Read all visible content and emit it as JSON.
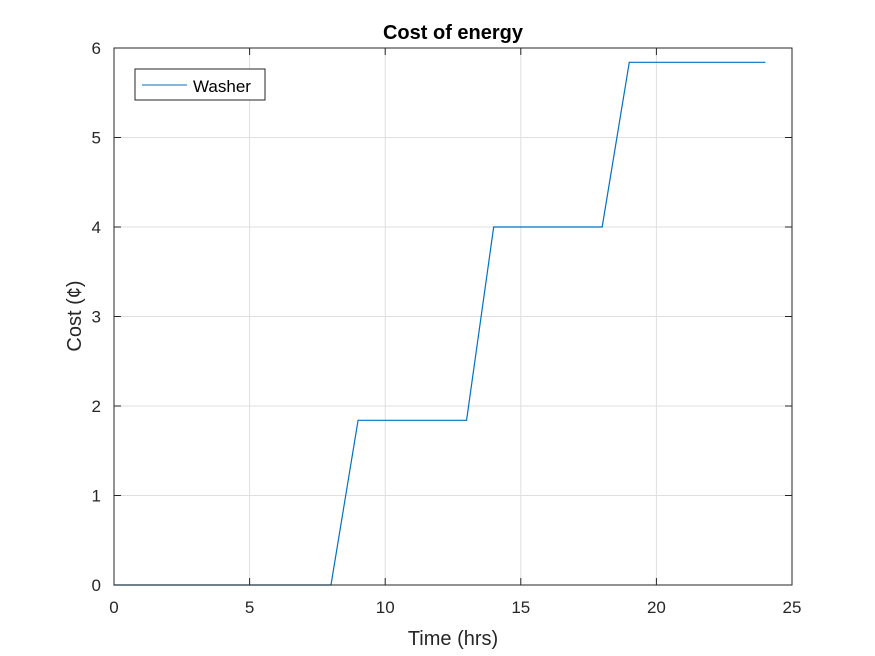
{
  "chart_data": {
    "type": "line",
    "title": "Cost of energy",
    "xlabel": "Time (hrs)",
    "ylabel": "Cost (¢)",
    "xlim": [
      0,
      25
    ],
    "ylim": [
      0,
      6
    ],
    "xticks": [
      0,
      5,
      10,
      15,
      20,
      25
    ],
    "yticks": [
      0,
      1,
      2,
      3,
      4,
      5,
      6
    ],
    "grid": true,
    "legend_position": "top-left",
    "series": [
      {
        "name": "Washer",
        "color": "#0072BD",
        "x": [
          0,
          8,
          9,
          13,
          14,
          18,
          19,
          24
        ],
        "y": [
          0,
          0,
          1.84,
          1.84,
          4.0,
          4.0,
          5.84,
          5.84
        ]
      }
    ]
  }
}
